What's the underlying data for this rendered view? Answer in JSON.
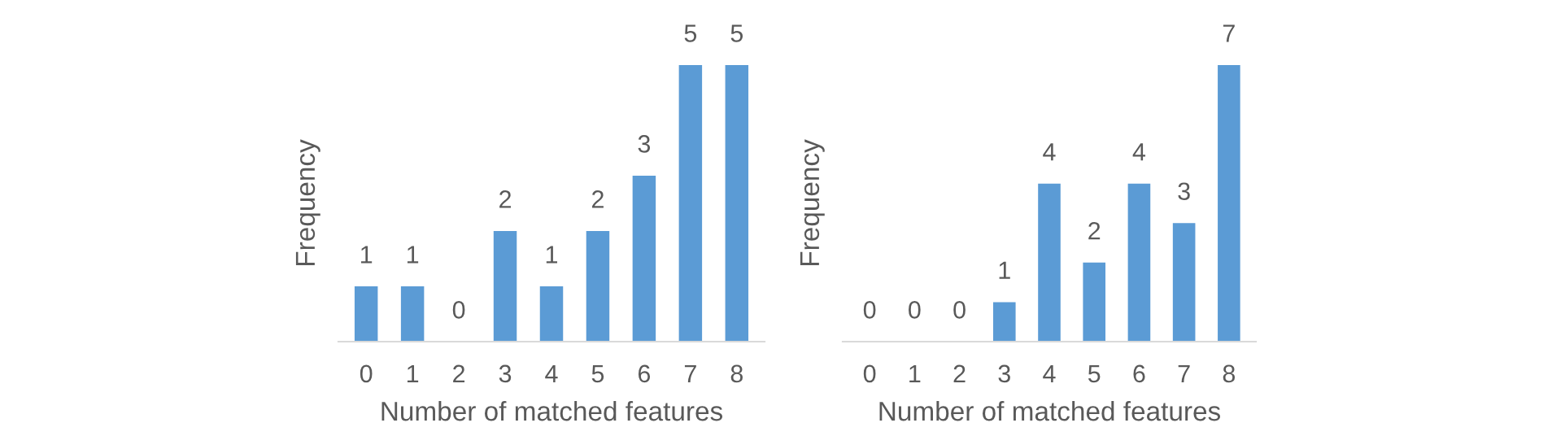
{
  "chart_data": [
    {
      "type": "bar",
      "xlabel": "Number of matched features",
      "ylabel": "Frequency",
      "categories": [
        "0",
        "1",
        "2",
        "3",
        "4",
        "5",
        "6",
        "7",
        "8"
      ],
      "values": [
        1,
        1,
        0,
        2,
        1,
        2,
        3,
        5,
        5
      ],
      "color": "#5b9bd5",
      "data_labels": true,
      "tick_labels": "x",
      "grid": false,
      "legend": false
    },
    {
      "type": "bar",
      "xlabel": "Number of matched features",
      "ylabel": "Frequency",
      "categories": [
        "0",
        "1",
        "2",
        "3",
        "4",
        "5",
        "6",
        "7",
        "8"
      ],
      "values": [
        0,
        0,
        0,
        1,
        4,
        2,
        4,
        3,
        7
      ],
      "color": "#5b9bd5",
      "data_labels": true,
      "tick_labels": "x",
      "grid": false,
      "legend": false
    }
  ]
}
